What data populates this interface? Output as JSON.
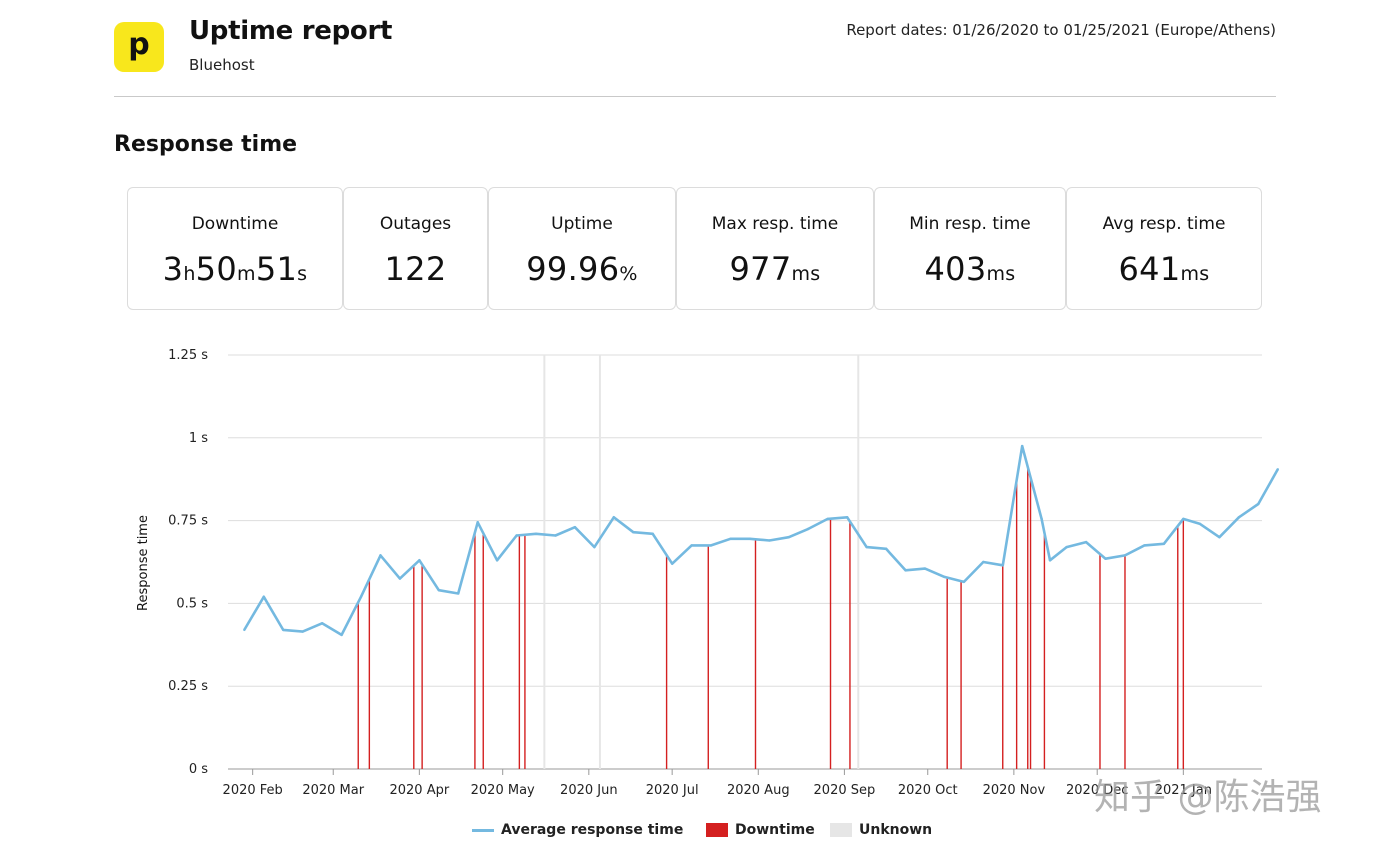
{
  "header": {
    "logo_letter": "p",
    "title": "Uptime report",
    "subtitle": "Bluehost",
    "dates": "Report dates: 01/26/2020 to 01/25/2021 (Europe/Athens)"
  },
  "section_title": "Response time",
  "stats": [
    {
      "label": "Downtime",
      "parts": [
        [
          "3",
          false
        ],
        [
          "h",
          true
        ],
        [
          "50",
          false
        ],
        [
          "m",
          true
        ],
        [
          "51",
          false
        ],
        [
          "s",
          true
        ]
      ]
    },
    {
      "label": "Outages",
      "parts": [
        [
          "122",
          false
        ]
      ]
    },
    {
      "label": "Uptime",
      "parts": [
        [
          "99.96",
          false
        ],
        [
          "%",
          true
        ]
      ]
    },
    {
      "label": "Max resp. time",
      "parts": [
        [
          "977",
          false
        ],
        [
          "ms",
          true
        ]
      ]
    },
    {
      "label": "Min resp. time",
      "parts": [
        [
          "403",
          false
        ],
        [
          "ms",
          true
        ]
      ]
    },
    {
      "label": "Avg resp. time",
      "parts": [
        [
          "641",
          false
        ],
        [
          "ms",
          true
        ]
      ]
    }
  ],
  "colors": {
    "line": "#74b9e0",
    "downtime": "#d42020",
    "unknown": "#e6e6e6",
    "grid": "#dddddd",
    "logo": "#f8e71c"
  },
  "chart_data": {
    "type": "line",
    "title": "Response time",
    "xlabel": "",
    "ylabel": "Response time",
    "ylim": [
      0,
      1.25
    ],
    "y_ticks": [
      0,
      0.25,
      0.5,
      0.75,
      1,
      1.25
    ],
    "y_tick_labels": [
      "0 s",
      "0.25 s",
      "0.5 s",
      "0.75 s",
      "1 s",
      "1.25 s"
    ],
    "x_range_days": [
      0,
      365
    ],
    "x_ticks": [
      {
        "label": "2020 Feb",
        "day": 6
      },
      {
        "label": "2020 Mar",
        "day": 35
      },
      {
        "label": "2020 Apr",
        "day": 66
      },
      {
        "label": "2020 May",
        "day": 96
      },
      {
        "label": "2020 Jun",
        "day": 127
      },
      {
        "label": "2020 Jul",
        "day": 157
      },
      {
        "label": "2020 Aug",
        "day": 188
      },
      {
        "label": "2020 Sep",
        "day": 219
      },
      {
        "label": "2020 Oct",
        "day": 249
      },
      {
        "label": "2020 Nov",
        "day": 280
      },
      {
        "label": "2020 Dec",
        "day": 310
      },
      {
        "label": "2021 Jan",
        "day": 341
      }
    ],
    "series": [
      {
        "name": "Average response time",
        "points": [
          [
            3,
            0.42
          ],
          [
            10,
            0.52
          ],
          [
            17,
            0.42
          ],
          [
            24,
            0.415
          ],
          [
            31,
            0.44
          ],
          [
            38,
            0.405
          ],
          [
            45,
            0.52
          ],
          [
            52,
            0.645
          ],
          [
            59,
            0.575
          ],
          [
            66,
            0.63
          ],
          [
            73,
            0.54
          ],
          [
            80,
            0.53
          ],
          [
            87,
            0.745
          ],
          [
            94,
            0.63
          ],
          [
            101,
            0.705
          ],
          [
            108,
            0.71
          ],
          [
            115,
            0.705
          ],
          [
            122,
            0.73
          ],
          [
            129,
            0.67
          ],
          [
            136,
            0.76
          ],
          [
            143,
            0.715
          ],
          [
            150,
            0.71
          ],
          [
            157,
            0.62
          ],
          [
            164,
            0.675
          ],
          [
            171,
            0.675
          ],
          [
            178,
            0.695
          ],
          [
            185,
            0.695
          ],
          [
            192,
            0.69
          ],
          [
            199,
            0.7
          ],
          [
            206,
            0.725
          ],
          [
            213,
            0.755
          ],
          [
            220,
            0.76
          ],
          [
            227,
            0.67
          ],
          [
            234,
            0.665
          ],
          [
            241,
            0.6
          ],
          [
            248,
            0.605
          ],
          [
            255,
            0.58
          ],
          [
            262,
            0.565
          ],
          [
            269,
            0.625
          ],
          [
            276,
            0.615
          ],
          [
            283,
            0.975
          ],
          [
            290,
            0.755
          ],
          [
            293,
            0.63
          ],
          [
            299,
            0.67
          ],
          [
            306,
            0.685
          ],
          [
            313,
            0.635
          ],
          [
            320,
            0.645
          ],
          [
            327,
            0.675
          ],
          [
            334,
            0.68
          ],
          [
            341,
            0.755
          ],
          [
            347,
            0.74
          ],
          [
            354,
            0.7
          ],
          [
            361,
            0.76
          ],
          [
            368,
            0.8
          ],
          [
            375,
            0.905
          ]
        ]
      }
    ],
    "downtime_days": [
      44,
      48,
      64,
      67,
      86,
      89,
      102,
      104,
      155,
      170,
      187,
      214,
      221,
      256,
      261,
      276,
      281,
      285,
      286,
      291,
      311,
      320,
      339,
      341
    ],
    "unknown_days": [
      111,
      131,
      224
    ],
    "legend": [
      "Average response time",
      "Downtime",
      "Unknown"
    ]
  },
  "watermark": "知乎 @陈浩强"
}
